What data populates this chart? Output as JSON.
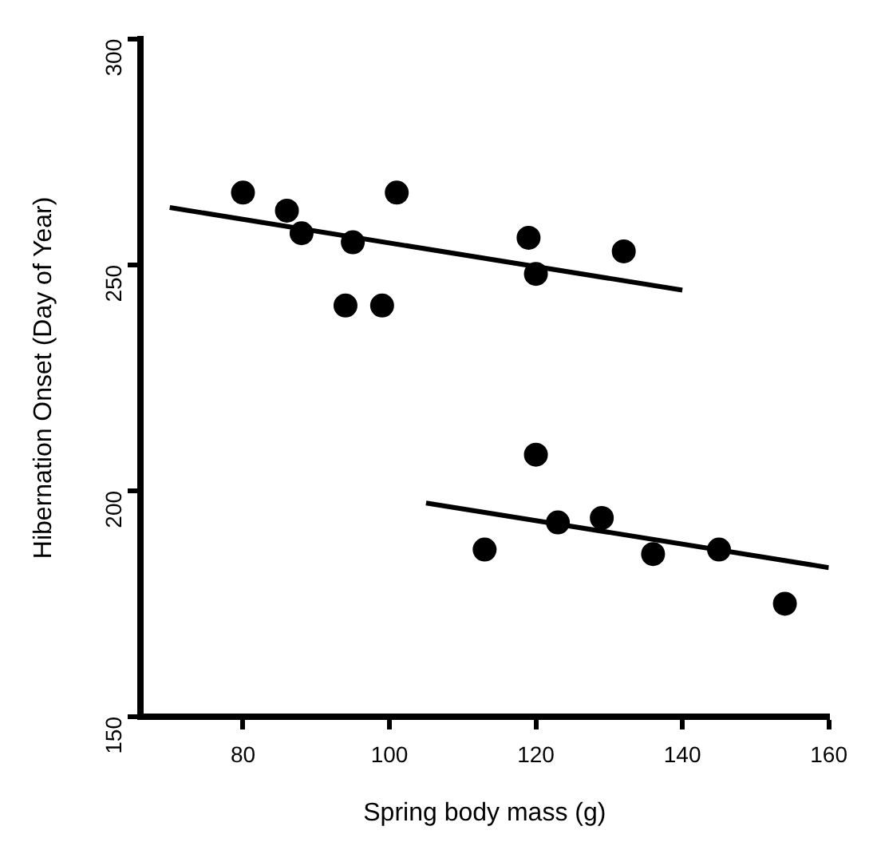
{
  "chart_data": {
    "type": "scatter",
    "xlabel": "Spring body mass (g)",
    "ylabel": "Hibernation Onset (Day of Year)",
    "xlim": [
      66,
      160
    ],
    "xticks": [
      80,
      100,
      120,
      140,
      160
    ],
    "ylim": [
      150,
      300
    ],
    "yticks": [
      150,
      200,
      250,
      300
    ],
    "grid": false,
    "legend": false,
    "marker": "circle",
    "series": [
      {
        "type": "scatter",
        "color": "#000000",
        "x": [
          80,
          86,
          88,
          95,
          94,
          99,
          101,
          119,
          120,
          132,
          120,
          113,
          123,
          129,
          136,
          145,
          154
        ],
        "values": [
          266,
          262,
          257,
          255,
          241,
          241,
          266,
          256,
          248,
          253,
          208,
          187,
          193,
          194,
          186,
          187,
          175
        ]
      },
      {
        "type": "line",
        "color": "#000000",
        "marker": "none",
        "x": [
          70,
          140
        ],
        "values": [
          262.7,
          244.4
        ]
      },
      {
        "type": "line",
        "color": "#000000",
        "marker": "none",
        "x": [
          105,
          160
        ],
        "values": [
          197.3,
          183.0
        ]
      }
    ]
  }
}
